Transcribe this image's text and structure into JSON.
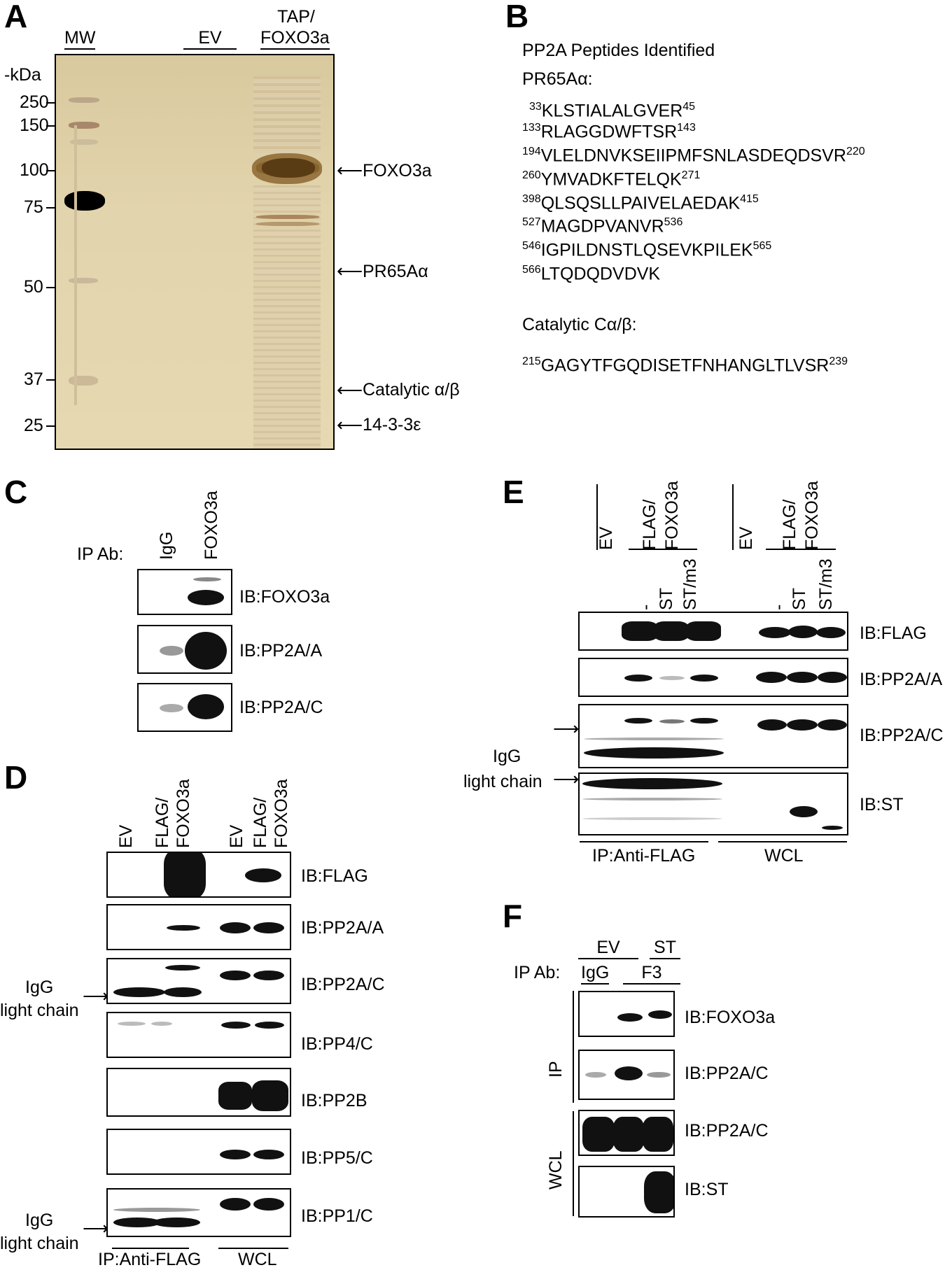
{
  "panels": {
    "a": "A",
    "b": "B",
    "c": "C",
    "d": "D",
    "e": "E",
    "f": "F"
  },
  "panel_a": {
    "lanes": {
      "mw": "MW",
      "ev": "EV",
      "tap_line1": "TAP/",
      "tap_line2": "FOXO3a"
    },
    "kda_label": "-kDa",
    "markers": [
      "250",
      "150",
      "100",
      "75",
      "50",
      "37",
      "25"
    ],
    "bands": {
      "foxo3a": "FOXO3a",
      "pr65": "PR65Aα",
      "catalytic": "Catalytic α/β",
      "1433": "14-3-3ε"
    }
  },
  "panel_b": {
    "title": "PP2A Peptides Identified",
    "pr65_title": "PR65Aα:",
    "peptides": [
      {
        "start": "33",
        "seq": "KLSTIALALGVER",
        "end": "45"
      },
      {
        "start": "133",
        "seq": "RLAGGDWFTSR",
        "end": "143"
      },
      {
        "start": "194",
        "seq": "VLELDNVKSEIIPMFSNLASDEQDSVR",
        "end": "220"
      },
      {
        "start": "260",
        "seq": "YMVADKFTELQK",
        "end": "271"
      },
      {
        "start": "398",
        "seq": "QLSQSLLPAIVELAEDAK",
        "end": "415"
      },
      {
        "start": "527",
        "seq": "MAGDPVANVR",
        "end": "536"
      },
      {
        "start": "546",
        "seq": "IGPILDNSTLQSEVKPILEK",
        "end": "565"
      },
      {
        "start": "566",
        "seq": "LTQDQDVDVK",
        "end": ""
      }
    ],
    "catalytic_title": "Catalytic Cα/β:",
    "catalytic_peptide": {
      "start": "215",
      "seq": "GAGYTFGQDISETFNHANGLTLVSR",
      "end": "239"
    }
  },
  "panel_c": {
    "ip_label": "IP Ab:",
    "lanes": [
      "IgG",
      "FOXO3a"
    ],
    "blots": [
      "IB:FOXO3a",
      "IB:PP2A/A",
      "IB:PP2A/C"
    ]
  },
  "panel_d": {
    "lanes": [
      "EV",
      "FLAG/",
      "FOXO3a",
      "EV",
      "FLAG/",
      "FOXO3a"
    ],
    "blots": [
      "IB:FLAG",
      "IB:PP2A/A",
      "IB:PP2A/C",
      "IB:PP4/C",
      "IB:PP2B",
      "IB:PP5/C",
      "IB:PP1/C"
    ],
    "igg1": "IgG",
    "igg2": "light chain",
    "groups": [
      "IP:Anti-FLAG",
      "WCL"
    ]
  },
  "panel_e": {
    "lanes": [
      "EV",
      "FLAG/",
      "FOXO3a",
      "EV",
      "FLAG/",
      "FOXO3a"
    ],
    "sub": [
      "-",
      "ST",
      "ST/m3",
      "-",
      "ST",
      "ST/m3"
    ],
    "blots": [
      "IB:FLAG",
      "IB:PP2A/A",
      "IB:PP2A/C",
      "IB:ST"
    ],
    "igg1": "IgG",
    "igg2": "light chain",
    "groups": [
      "IP:Anti-FLAG",
      "WCL"
    ]
  },
  "panel_f": {
    "top": [
      "EV",
      "ST"
    ],
    "ip_label": "IP Ab:",
    "lanes": [
      "IgG",
      "F3"
    ],
    "side": [
      "IP",
      "WCL"
    ],
    "blots": [
      "IB:FOXO3a",
      "IB:PP2A/C",
      "IB:PP2A/C",
      "IB:ST"
    ]
  }
}
